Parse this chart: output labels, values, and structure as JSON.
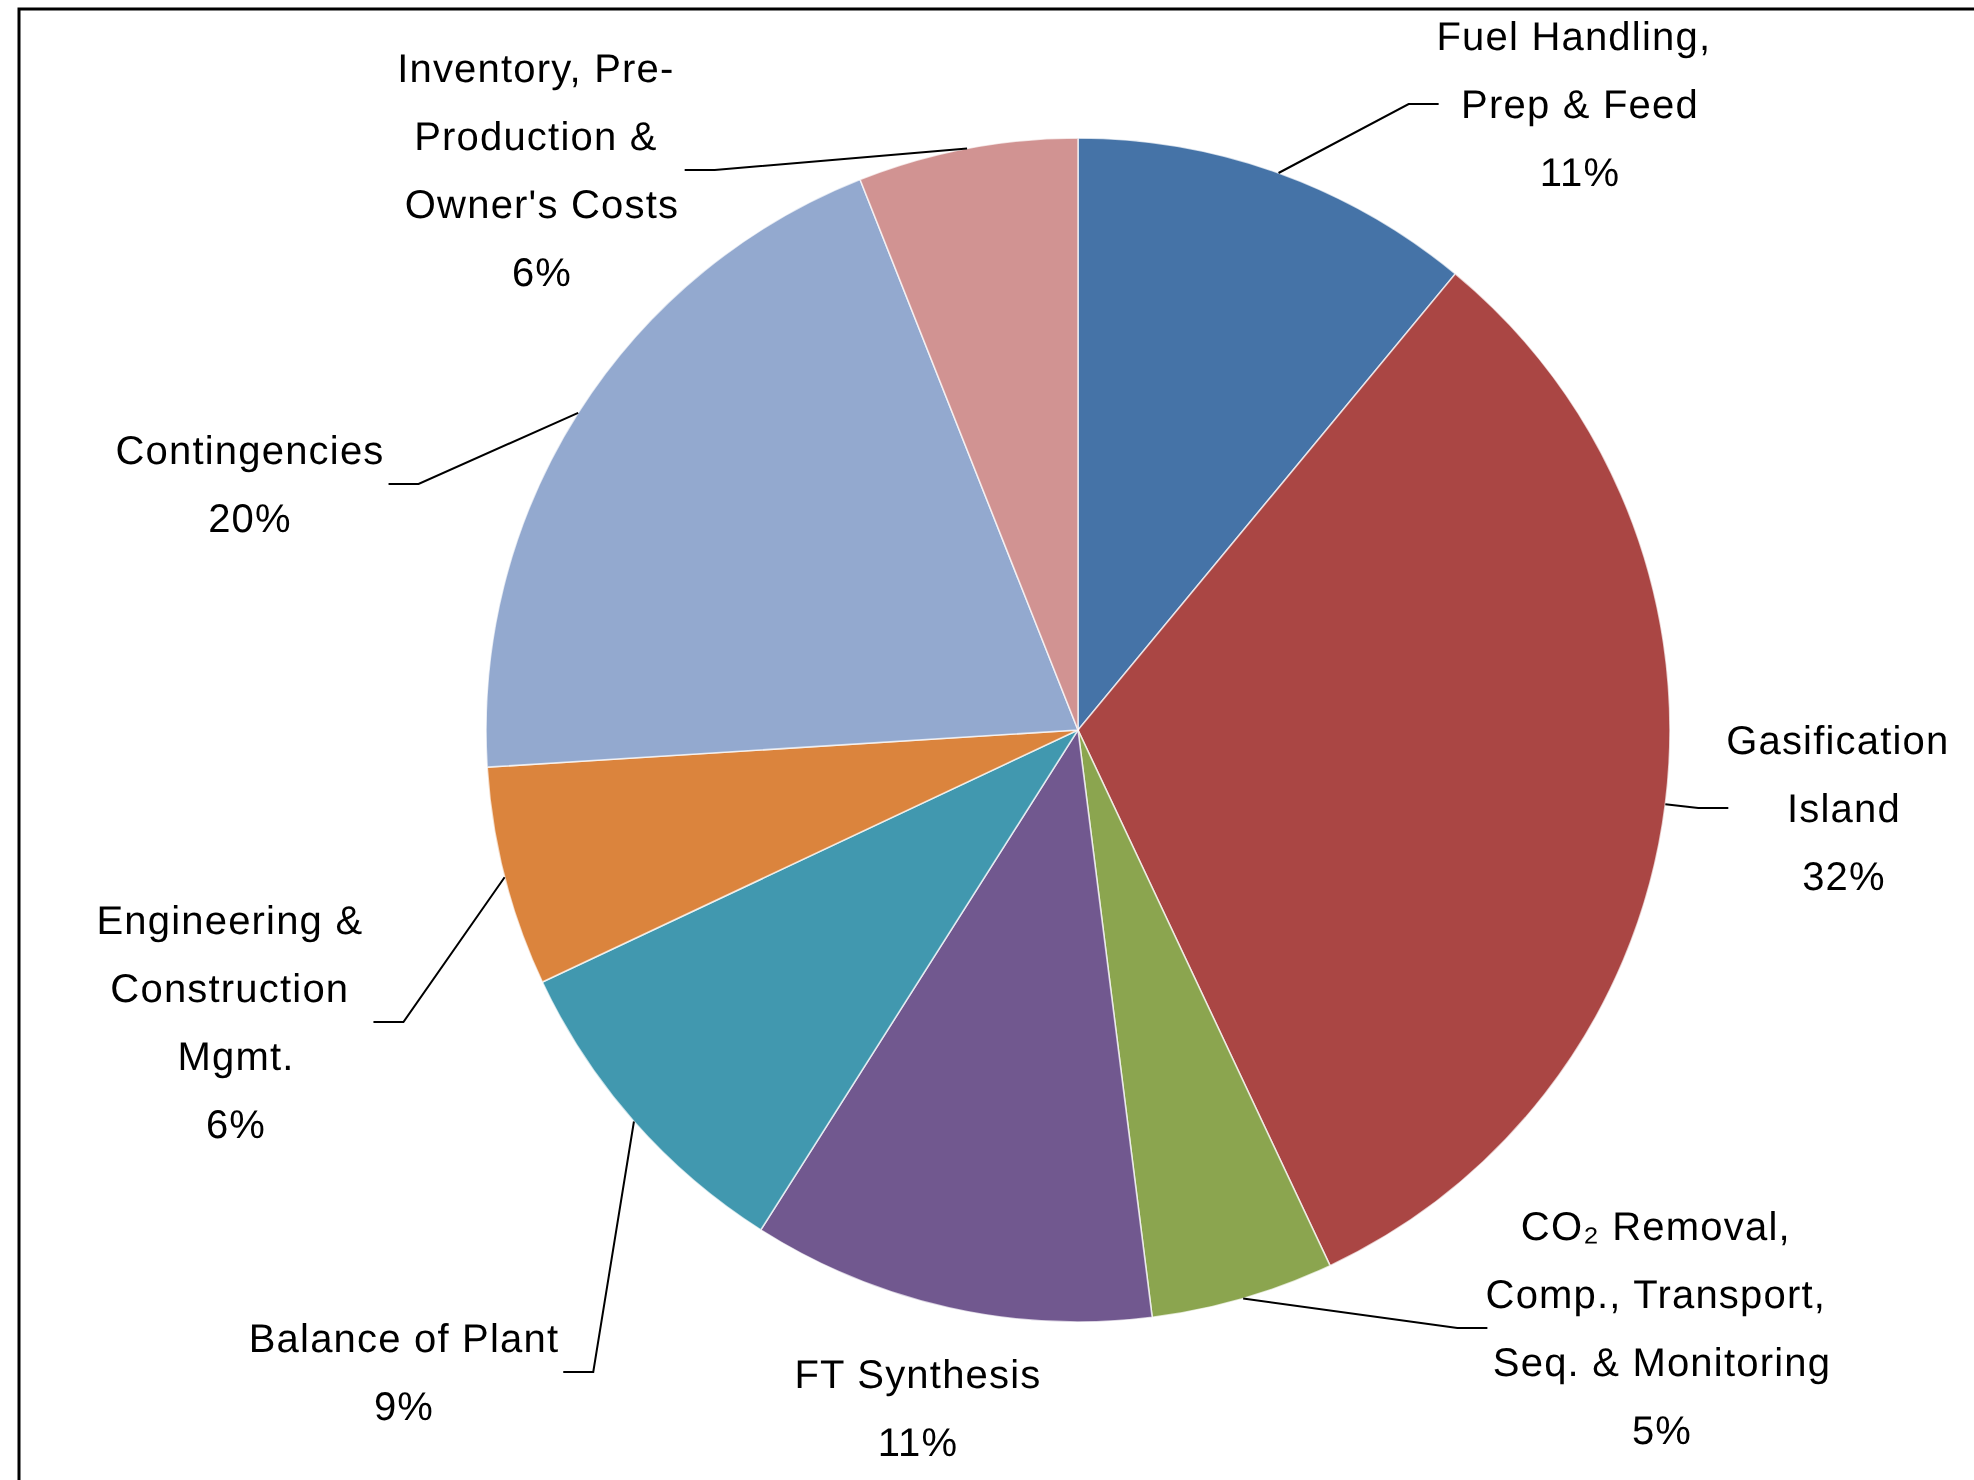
{
  "chart_data": {
    "type": "pie",
    "categories": [
      "Fuel Handling,\nPrep & Feed",
      "Gasification\nIsland",
      "CO₂ Removal,\nComp., Transport,\nSeq. & Monitoring",
      "FT Synthesis",
      "Balance of Plant",
      "Engineering &\nConstruction\nMgmt.",
      "Contingencies",
      "Inventory, Pre-\nProduction &\nOwner's Costs"
    ],
    "values": [
      11,
      32,
      5,
      11,
      9,
      6,
      20,
      6
    ],
    "value_labels": [
      "11%",
      "32%",
      "5%",
      "11%",
      "9%",
      "6%",
      "20%",
      "6%"
    ],
    "colors": [
      "#4573a7",
      "#aa4644",
      "#8ba54f",
      "#71588f",
      "#4198af",
      "#db843d",
      "#93a9cf",
      "#d19392"
    ]
  }
}
